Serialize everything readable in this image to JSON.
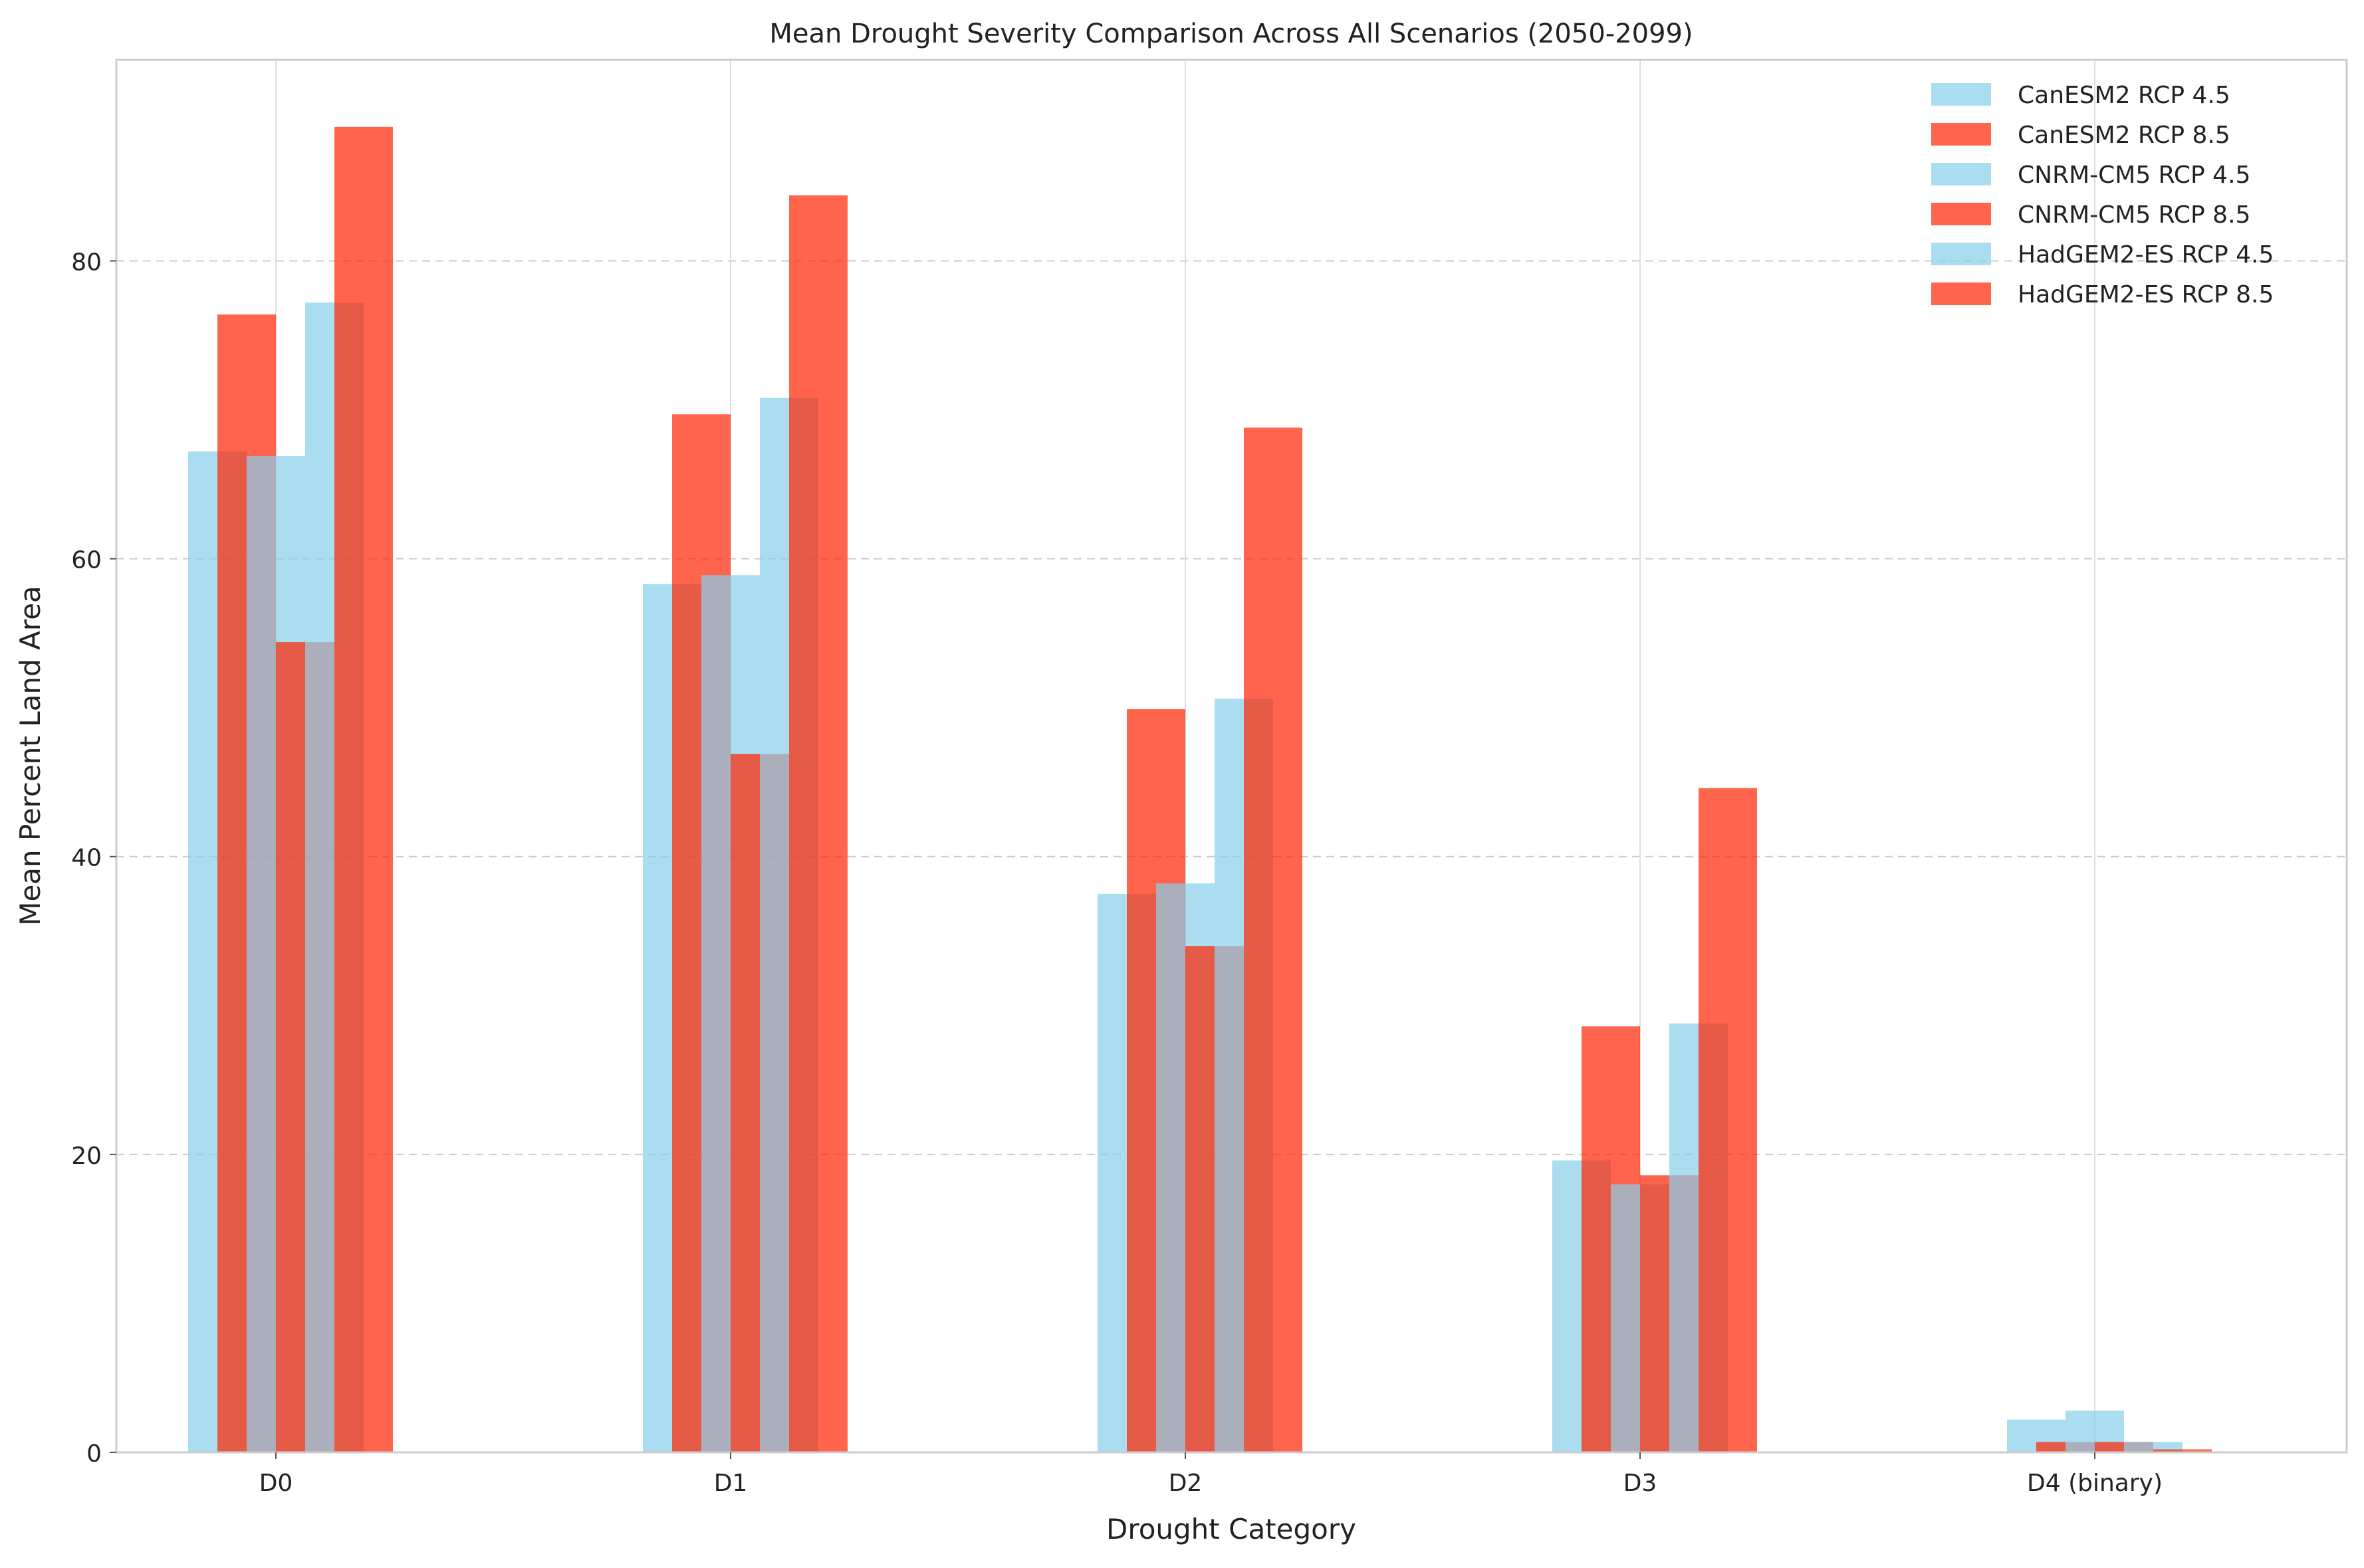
{
  "chart_data": {
    "type": "bar",
    "title": "Mean Drought Severity Comparison Across All Scenarios (2050-2099)",
    "xlabel": "Drought Category",
    "ylabel": "Mean Percent Land Area",
    "categories": [
      "D0",
      "D1",
      "D2",
      "D3",
      "D4 (binary)"
    ],
    "ylim": [
      0,
      93.5
    ],
    "yticks": [
      0,
      20,
      40,
      60,
      80
    ],
    "grid": {
      "y": true,
      "x": true,
      "y_style": "dashed"
    },
    "legend_position": "top-right",
    "bar_alpha": 0.7,
    "colors": {
      "rcp45": "#87CEEB",
      "rcp85": "#FF2400"
    },
    "series": [
      {
        "name": "CanESM2 RCP 4.5",
        "color": "#87CEEB",
        "values": [
          67.2,
          58.3,
          37.5,
          19.6,
          2.2
        ]
      },
      {
        "name": "CanESM2 RCP 8.5",
        "color": "#FF2400",
        "values": [
          76.4,
          69.7,
          49.9,
          28.6,
          0.7
        ]
      },
      {
        "name": "CNRM-CM5 RCP 4.5",
        "color": "#87CEEB",
        "values": [
          66.9,
          58.9,
          38.2,
          18.0,
          2.8
        ]
      },
      {
        "name": "CNRM-CM5 RCP 8.5",
        "color": "#FF2400",
        "values": [
          54.4,
          46.9,
          34.0,
          18.6,
          0.7
        ]
      },
      {
        "name": "HadGEM2-ES RCP 4.5",
        "color": "#87CEEB",
        "values": [
          77.2,
          70.8,
          50.6,
          28.8,
          0.7
        ]
      },
      {
        "name": "HadGEM2-ES RCP 8.5",
        "color": "#FF2400",
        "values": [
          89.0,
          84.4,
          68.8,
          44.6,
          0.2
        ]
      }
    ]
  }
}
